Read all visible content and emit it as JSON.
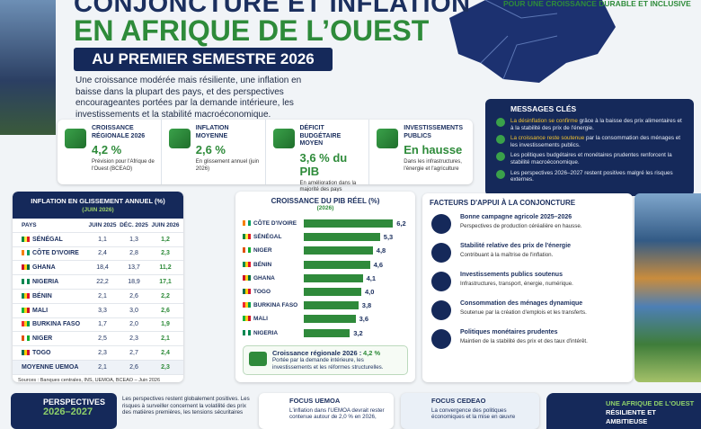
{
  "header": {
    "title_line1": "CONJONCTURE ET INFLATION",
    "title_line2": "EN AFRIQUE DE L’OUEST",
    "subtitle": "AU PREMIER SEMESTRE 2026",
    "tagline": "POUR UNE CROISSANCE DURABLE ET INCLUSIVE",
    "intro": "Une croissance modérée mais résiliente, une inflation en baisse dans la plupart des pays, et des perspectives encourageantes portées par la demande intérieure, les investissements et la stabilité macroéconomique."
  },
  "kpis": [
    {
      "label": "CROISSANCE RÉGIONALE 2026",
      "value": "4,2 %",
      "note": "Prévision pour l'Afrique de l'Ouest (BCEAO)"
    },
    {
      "label": "INFLATION MOYENNE",
      "value": "2,6 %",
      "note": "En glissement annuel (juin 2026)"
    },
    {
      "label": "DÉFICIT BUDGÉTAIRE MOYEN",
      "value": "3,6 % du PIB",
      "note": "En amélioration dans la majorité des pays"
    },
    {
      "label": "INVESTISSEMENTS PUBLICS",
      "value": "En hausse",
      "note": "Dans les infrastructures, l'énergie et l'agriculture"
    }
  ],
  "messages": {
    "title": "MESSAGES CLÉS",
    "items": [
      {
        "highlight": "La désinflation se confirme",
        "text": "grâce à la baisse des prix alimentaires et à la stabilité des prix de l'énergie."
      },
      {
        "highlight": "La croissance reste soutenue",
        "text": "par la consommation des ménages et les investissements publics."
      },
      {
        "text": "Les politiques budgétaires et monétaires prudentes renforcent la stabilité macroéconomique."
      },
      {
        "text": "Les perspectives 2026–2027 restent positives malgré les risques externes."
      }
    ]
  },
  "inflation_table": {
    "title": "INFLATION EN GLISSEMENT ANNUEL (%)",
    "subtitle": "(JUIN 2026)",
    "columns": [
      "PAYS",
      "JUIN 2025",
      "DÉC. 2025",
      "JUIN 2026"
    ],
    "rows": [
      [
        "SÉNÉGAL",
        "1,1",
        "1,3",
        "1,2"
      ],
      [
        "CÔTE D'IVOIRE",
        "2,4",
        "2,8",
        "2,3"
      ],
      [
        "GHANA",
        "18,4",
        "13,7",
        "11,2"
      ],
      [
        "NIGERIA",
        "22,2",
        "18,9",
        "17,1"
      ],
      [
        "BÉNIN",
        "2,1",
        "2,6",
        "2,2"
      ],
      [
        "MALI",
        "3,3",
        "3,0",
        "2,6"
      ],
      [
        "BURKINA FASO",
        "1,7",
        "2,0",
        "1,9"
      ],
      [
        "NIGER",
        "2,5",
        "2,3",
        "2,1"
      ],
      [
        "TOGO",
        "2,3",
        "2,7",
        "2,4"
      ],
      [
        "MOYENNE UEMOA",
        "2,1",
        "2,6",
        "2,3"
      ]
    ],
    "source": "Sources : Banques centrales, INS, UEMOA, BCEAO – Juin 2026"
  },
  "gdp_chart": {
    "type": "bar",
    "title": "CROISSANCE DU PIB RÉEL (%)",
    "subtitle": "(2026)",
    "categories": [
      "CÔTE D'IVOIRE",
      "SÉNÉGAL",
      "NIGER",
      "BÉNIN",
      "GHANA",
      "TOGO",
      "BURKINA FASO",
      "MALI",
      "NIGERIA"
    ],
    "values": [
      6.2,
      5.3,
      4.8,
      4.6,
      4.1,
      4.0,
      3.8,
      3.6,
      3.2
    ],
    "value_labels": [
      "6,2",
      "5,3",
      "4,8",
      "4,6",
      "4,1",
      "4,0",
      "3,8",
      "3,6",
      "3,2"
    ],
    "color": "#2f8a3b",
    "callout_label": "Croissance régionale 2026 :",
    "callout_value": "4,2 %",
    "callout_text": "Portée par la demande intérieure, les investissements et les réformes structurelles."
  },
  "factors": {
    "title": "FACTEURS D'APPUI À LA CONJONCTURE",
    "items": [
      {
        "title": "Bonne campagne agricole 2025–2026",
        "text": "Perspectives de production céréalière en hausse."
      },
      {
        "title": "Stabilité relative des prix de l'énergie",
        "text": "Contribuant à la maîtrise de l'inflation."
      },
      {
        "title": "Investissements publics soutenus",
        "text": "Infrastructures, transport, énergie, numérique."
      },
      {
        "title": "Consommation des ménages dynamique",
        "text": "Soutenue par la création d'emplois et les transferts."
      },
      {
        "title": "Politiques monétaires prudentes",
        "text": "Maintien de la stabilité des prix et des taux d'intérêt."
      }
    ]
  },
  "footer": {
    "perspectives_title": "PERSPECTIVES",
    "perspectives_years": "2026–2027",
    "perspectives_text": "Les perspectives restent globalement positives. Les risques à surveiller concernent la volatilité des prix des matières premières, les tensions sécuritaires",
    "uemoa_title": "FOCUS UEMOA",
    "uemoa_text": "L'inflation dans l'UEMOA devrait rester contenue autour de 2,0 % en 2026,",
    "cedeao_title": "FOCUS CEDEAO",
    "cedeao_text": "La convergence des politiques économiques et la mise en œuvre",
    "closing_line1": "UNE AFRIQUE DE L'OUEST",
    "closing_line2": "RÉSILIENTE ET AMBITIEUSE"
  }
}
